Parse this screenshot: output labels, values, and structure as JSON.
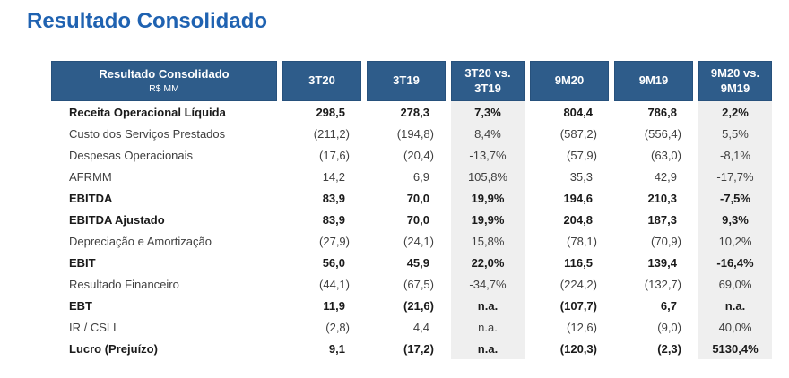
{
  "title": "Resultado Consolidado",
  "colors": {
    "title_color": "#1F62B1",
    "header_bg": "#2E5C8A",
    "header_border": "#27517C",
    "header_text": "#FFFFFF",
    "vs_column_bg": "#EFEFEF",
    "text_color": "#3F3F3F",
    "bold_text_color": "#1A1A1A"
  },
  "table": {
    "columns": [
      {
        "title": "Resultado Consolidado",
        "subtitle": "R$ MM",
        "type": "label"
      },
      {
        "title": "3T20",
        "type": "number"
      },
      {
        "title": "3T19",
        "type": "number"
      },
      {
        "title": "3T20 vs.\n3T19",
        "type": "percent"
      },
      {
        "title": "9M20",
        "type": "number"
      },
      {
        "title": "9M19",
        "type": "number"
      },
      {
        "title": "9M20 vs.\n9M19",
        "type": "percent"
      }
    ],
    "rows": [
      {
        "label": "Receita Operacional Líquida",
        "bold": true,
        "values": [
          "298,5",
          "278,3",
          "7,3%",
          "804,4",
          "786,8",
          "2,2%"
        ]
      },
      {
        "label": "Custo dos Serviços Prestados",
        "bold": false,
        "values": [
          "(211,2)",
          "(194,8)",
          "8,4%",
          "(587,2)",
          "(556,4)",
          "5,5%"
        ]
      },
      {
        "label": "Despesas Operacionais",
        "bold": false,
        "values": [
          "(17,6)",
          "(20,4)",
          "-13,7%",
          "(57,9)",
          "(63,0)",
          "-8,1%"
        ]
      },
      {
        "label": "AFRMM",
        "bold": false,
        "values": [
          "14,2",
          "6,9",
          "105,8%",
          "35,3",
          "42,9",
          "-17,7%"
        ]
      },
      {
        "label": "EBITDA",
        "bold": true,
        "values": [
          "83,9",
          "70,0",
          "19,9%",
          "194,6",
          "210,3",
          "-7,5%"
        ]
      },
      {
        "label": "EBITDA Ajustado",
        "bold": true,
        "values": [
          "83,9",
          "70,0",
          "19,9%",
          "204,8",
          "187,3",
          "9,3%"
        ]
      },
      {
        "label": "Depreciação e Amortização",
        "bold": false,
        "values": [
          "(27,9)",
          "(24,1)",
          "15,8%",
          "(78,1)",
          "(70,9)",
          "10,2%"
        ]
      },
      {
        "label": "EBIT",
        "bold": true,
        "values": [
          "56,0",
          "45,9",
          "22,0%",
          "116,5",
          "139,4",
          "-16,4%"
        ]
      },
      {
        "label": "Resultado Financeiro",
        "bold": false,
        "values": [
          "(44,1)",
          "(67,5)",
          "-34,7%",
          "(224,2)",
          "(132,7)",
          "69,0%"
        ]
      },
      {
        "label": "EBT",
        "bold": true,
        "values": [
          "11,9",
          "(21,6)",
          "n.a.",
          "(107,7)",
          "6,7",
          "n.a."
        ]
      },
      {
        "label": "IR / CSLL",
        "bold": false,
        "values": [
          "(2,8)",
          "4,4",
          "n.a.",
          "(12,6)",
          "(9,0)",
          "40,0%"
        ]
      },
      {
        "label": "Lucro (Prejuízo)",
        "bold": true,
        "values": [
          "9,1",
          "(17,2)",
          "n.a.",
          "(120,3)",
          "(2,3)",
          "5130,4%"
        ]
      }
    ]
  }
}
